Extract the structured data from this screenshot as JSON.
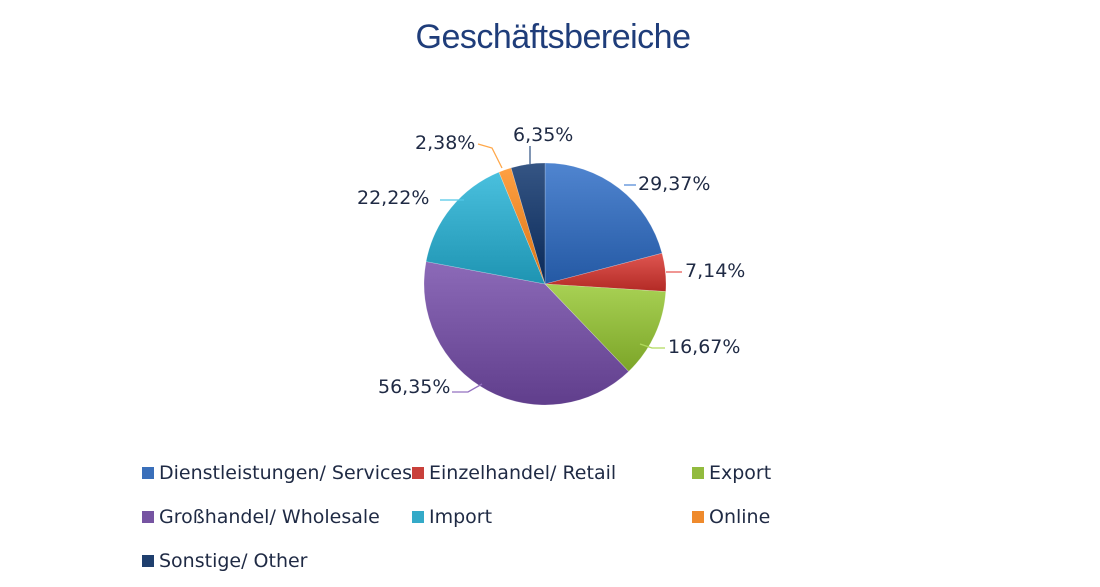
{
  "chart_data": {
    "type": "pie",
    "title": "Geschäftsbereiche",
    "labels": [
      "Dienstleistungen/ Services",
      "Einzelhandel/ Retail",
      "Export",
      "Großhandel/ Wholesale",
      "Import",
      "Online",
      "Sonstige/ Other"
    ],
    "values": [
      29.37,
      7.14,
      16.67,
      56.35,
      22.22,
      2.38,
      6.35
    ],
    "data_labels": [
      "29,37%",
      "7,14%",
      "16,67%",
      "56,35%",
      "22,22%",
      "2,38%",
      "6,35%"
    ],
    "colors": [
      "#3a6fba",
      "#c9403b",
      "#92bb3e",
      "#7654a2",
      "#34aac8",
      "#ef8a2c",
      "#1f3f6e"
    ],
    "legend_position": "bottom"
  }
}
